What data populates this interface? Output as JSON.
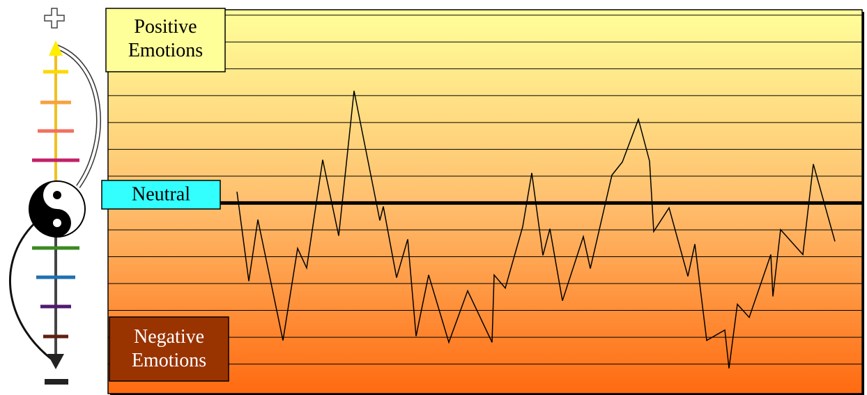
{
  "chart_data": {
    "type": "line",
    "labels": {
      "positive": "Positive Emotions",
      "neutral": "Neutral",
      "negative": "Negative Emotions"
    },
    "baseline": 0,
    "x": [
      185,
      202,
      215,
      251,
      272,
      285,
      308,
      331,
      353,
      390,
      395,
      414,
      430,
      442,
      460,
      489,
      516,
      551,
      554,
      570,
      595,
      608,
      624,
      634,
      652,
      682,
      692,
      723,
      738,
      761,
      777,
      783,
      805,
      832,
      842,
      859,
      885,
      891,
      903,
      920,
      951,
      954,
      965,
      997,
      1012,
      1043
    ],
    "values": [
      0.42,
      -2.91,
      -0.62,
      -5.12,
      -1.69,
      -2.42,
      1.61,
      -1.22,
      4.18,
      -0.65,
      -0.13,
      -2.78,
      -1.35,
      -4.96,
      -2.68,
      -5.19,
      -3.27,
      -5.19,
      -2.68,
      -3.17,
      -0.88,
      1.12,
      -1.95,
      -0.96,
      -3.64,
      -1.25,
      -2.44,
      1.04,
      1.53,
      3.12,
      1.56,
      -1.06,
      -0.18,
      -2.73,
      -1.53,
      -5.12,
      -4.73,
      -6.16,
      -3.77,
      -4.26,
      -1.92,
      -3.48,
      -0.99,
      -1.92,
      1.45,
      -1.43
    ],
    "color": "#000000",
    "xlim": [
      0,
      1082
    ],
    "ylim": [
      -7.1,
      7.2
    ],
    "yticks": [
      -6,
      -5,
      -4,
      -3,
      -2,
      -1,
      1,
      2,
      3,
      4,
      5,
      6,
      7
    ],
    "grid": true
  }
}
